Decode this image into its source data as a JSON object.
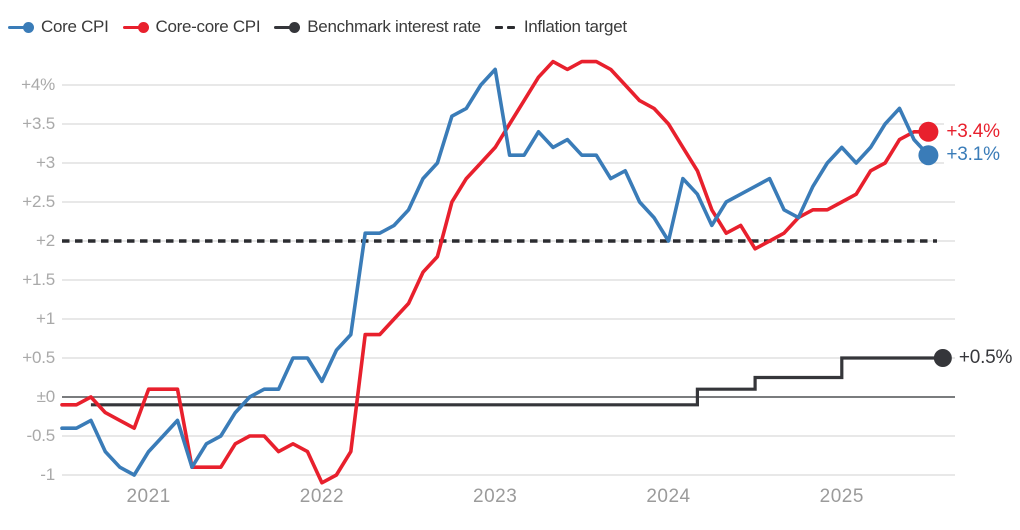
{
  "chart_data": {
    "type": "line",
    "title": "",
    "months_start": "2020-07",
    "months_end": "2025-07",
    "grid": "horizontal",
    "legend_position": "top-left",
    "background_color": "#ffffff",
    "gridline_color": "#d9d9d9",
    "zero_line_color": "#4f5053",
    "axis_label_color": "#a9a9a9",
    "ylim": [
      -1.25,
      4.45
    ],
    "y_ticks": [
      {
        "label": "+4%",
        "value": 4
      },
      {
        "label": "+3.5",
        "value": 3.5
      },
      {
        "label": "+3",
        "value": 3
      },
      {
        "label": "+2.5",
        "value": 2.5
      },
      {
        "label": "+2",
        "value": 2
      },
      {
        "label": "+1.5",
        "value": 1.5
      },
      {
        "label": "+1",
        "value": 1
      },
      {
        "label": "+0.5",
        "value": 0.5
      },
      {
        "label": "±0",
        "value": 0
      },
      {
        "label": "-0.5",
        "value": -0.5
      },
      {
        "label": "-1",
        "value": -1
      }
    ],
    "x_ticks": [
      {
        "label": "2021",
        "month": "2021-01"
      },
      {
        "label": "2022",
        "month": "2022-01"
      },
      {
        "label": "2023",
        "month": "2023-01"
      },
      {
        "label": "2024",
        "month": "2024-01"
      },
      {
        "label": "2025",
        "month": "2025-01"
      }
    ],
    "series": [
      {
        "name": "Core CPI",
        "color": "#3a7cb8",
        "kind": "monthly-line",
        "end_label": "+3.1%",
        "values": [
          -0.4,
          -0.4,
          -0.3,
          -0.7,
          -0.9,
          -1.0,
          -0.7,
          -0.5,
          -0.3,
          -0.9,
          -0.6,
          -0.5,
          -0.2,
          0.0,
          0.1,
          0.1,
          0.5,
          0.5,
          0.2,
          0.6,
          0.8,
          2.1,
          2.1,
          2.2,
          2.4,
          2.8,
          3.0,
          3.6,
          3.7,
          4.0,
          4.2,
          3.1,
          3.1,
          3.4,
          3.2,
          3.3,
          3.1,
          3.1,
          2.8,
          2.9,
          2.5,
          2.3,
          2.0,
          2.8,
          2.6,
          2.2,
          2.5,
          2.6,
          2.7,
          2.8,
          2.4,
          2.3,
          2.7,
          3.0,
          3.2,
          3.0,
          3.2,
          3.5,
          3.7,
          3.3,
          3.1
        ]
      },
      {
        "name": "Core-core CPI",
        "color": "#e8202d",
        "kind": "monthly-line",
        "end_label": "+3.4%",
        "values": [
          -0.1,
          -0.1,
          0.0,
          -0.2,
          -0.3,
          -0.4,
          0.1,
          0.1,
          0.1,
          -0.9,
          -0.9,
          -0.9,
          -0.6,
          -0.5,
          -0.5,
          -0.7,
          -0.6,
          -0.7,
          -1.1,
          -1.0,
          -0.7,
          0.8,
          0.8,
          1.0,
          1.2,
          1.6,
          1.8,
          2.5,
          2.8,
          3.0,
          3.2,
          3.5,
          3.8,
          4.1,
          4.3,
          4.2,
          4.3,
          4.3,
          4.2,
          4.0,
          3.8,
          3.7,
          3.5,
          3.2,
          2.9,
          2.4,
          2.1,
          2.2,
          1.9,
          2.0,
          2.1,
          2.3,
          2.4,
          2.4,
          2.5,
          2.6,
          2.9,
          3.0,
          3.3,
          3.4,
          3.4
        ]
      },
      {
        "name": "Benchmark interest rate",
        "color": "#35363a",
        "kind": "step",
        "end_label": "+0.5%",
        "segments": [
          {
            "from": "2020-09",
            "to": "2024-02",
            "rate": -0.1
          },
          {
            "from": "2024-03",
            "to": "2024-06",
            "rate": 0.1
          },
          {
            "from": "2024-07",
            "to": "2024-12",
            "rate": 0.25
          },
          {
            "from": "2025-01",
            "to": "2025-08",
            "rate": 0.5
          }
        ]
      },
      {
        "name": "Inflation target",
        "color": "#2b2c30",
        "kind": "dashed-reference",
        "value": 2.0
      }
    ]
  }
}
